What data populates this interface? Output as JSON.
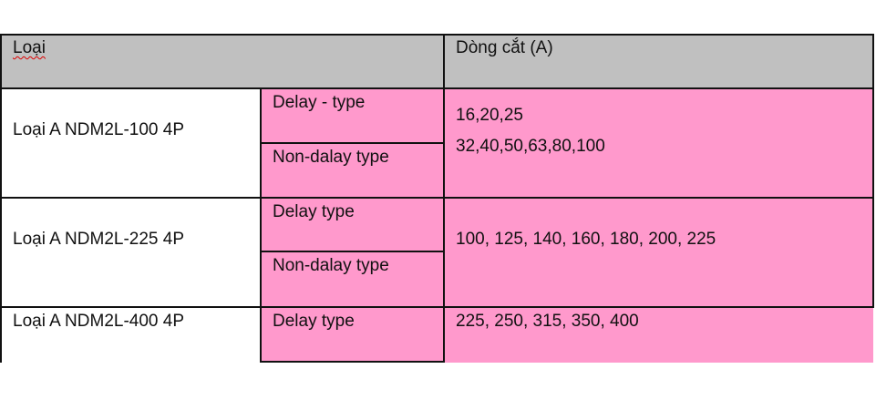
{
  "table": {
    "header": {
      "col_type": "Loại",
      "col_current": "Dòng cắt (A)"
    },
    "rows": [
      {
        "model": "Loại A NDM2L-100 4P",
        "types": [
          "Delay - type",
          "Non-dalay type"
        ],
        "currents": [
          "16,20,25",
          "32,40,50,63,80,100"
        ]
      },
      {
        "model": "Loại A NDM2L-225 4P",
        "types": [
          "Delay type",
          "Non-dalay type"
        ],
        "currents": [
          "100, 125, 140, 160, 180, 200, 225"
        ]
      },
      {
        "model": "Loại A NDM2L-400 4P",
        "types": [
          "Delay type"
        ],
        "currents": [
          "225, 250, 315, 350, 400"
        ]
      }
    ]
  },
  "colors": {
    "header_bg": "#c0c0c0",
    "highlight_bg": "#ff99cc"
  }
}
